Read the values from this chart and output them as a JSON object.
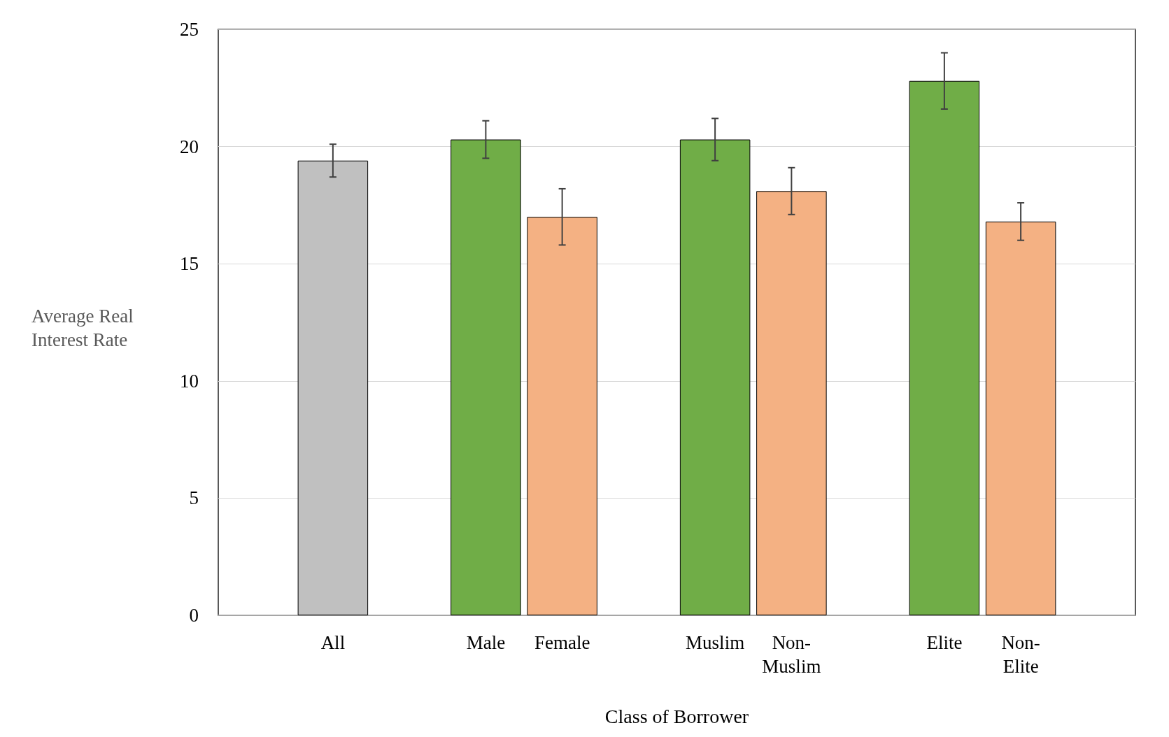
{
  "chart_data": {
    "type": "bar",
    "xlabel": "Class of Borrower",
    "ylabel": "Average Real Interest Rate",
    "categories": [
      null,
      "All",
      null,
      "Male",
      "Female",
      null,
      "Muslim",
      "Non-Muslim",
      null,
      "Elite",
      "Non-Elite",
      null
    ],
    "values": [
      null,
      19.4,
      null,
      20.3,
      17.0,
      null,
      20.3,
      18.1,
      null,
      22.8,
      16.8,
      null
    ],
    "colors": [
      "#c0c0c0",
      "#c0c0c0",
      "#70ad47",
      "#70ad47",
      "#f4b183",
      "#70ad47",
      "#70ad47",
      "#f4b183",
      "#70ad47",
      "#70ad47",
      "#f4b183",
      "#f4b183"
    ],
    "errors": [
      null,
      0.7,
      null,
      0.8,
      1.2,
      null,
      0.9,
      1.0,
      null,
      1.2,
      0.8,
      null
    ],
    "ylim": [
      0,
      25
    ],
    "yticks": [
      0,
      5,
      10,
      15,
      20,
      25
    ],
    "grid": "y"
  }
}
